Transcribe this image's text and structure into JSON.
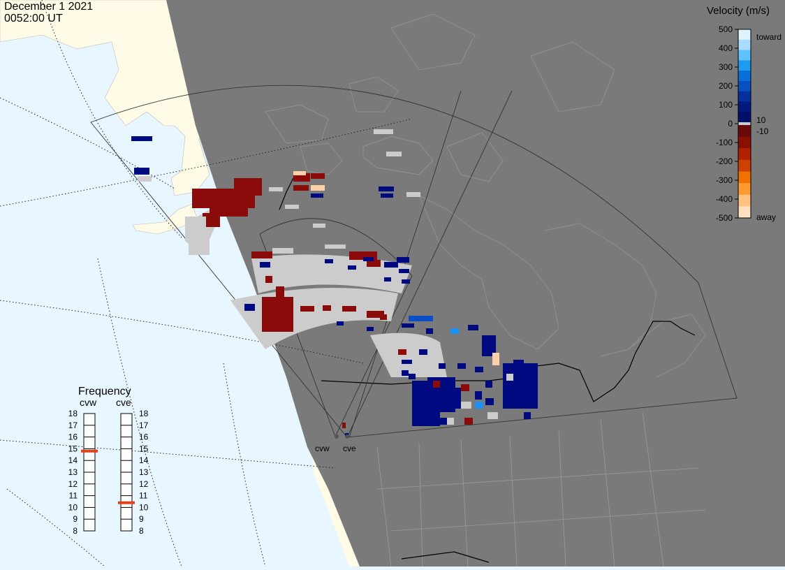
{
  "header": {
    "date": "December 1 2021",
    "time": "0052:00 UT"
  },
  "colorbar": {
    "title": "Velocity (m/s)",
    "ticks": [
      "500",
      "400",
      "300",
      "200",
      "100",
      "0",
      "-100",
      "-200",
      "-300",
      "-400",
      "-500"
    ],
    "small_pos": "10",
    "small_neg": "-10",
    "top_label": "toward",
    "bottom_label": "away",
    "colors_top_to_bottom": [
      "#dff3ff",
      "#a8ddff",
      "#5ec3ff",
      "#1e9cf0",
      "#0a6fd8",
      "#0750c0",
      "#042f9c",
      "#001a80",
      "#00106a"
    ],
    "colors_neg": [
      "#6a0a0a",
      "#8a1000",
      "#b22000",
      "#d04000",
      "#f07000",
      "#ff9a30",
      "#ffc280",
      "#ffe0c0"
    ]
  },
  "radars": {
    "west_label": "cvw",
    "east_label": "cve"
  },
  "frequency": {
    "title": "Frequency",
    "cvw_label": "cvw",
    "cve_label": "cve",
    "scale": [
      "18",
      "17",
      "16",
      "15",
      "14",
      "13",
      "12",
      "11",
      "10",
      "9",
      "8"
    ],
    "cvw_mhz": 14.8,
    "cve_mhz": 10.4
  },
  "colors": {
    "ocean": "#e8f6ff",
    "land_day": "#fffbe6",
    "night": "#7a7a7a",
    "ground_scatter": "#cccccc",
    "marker": "#e0401a"
  }
}
